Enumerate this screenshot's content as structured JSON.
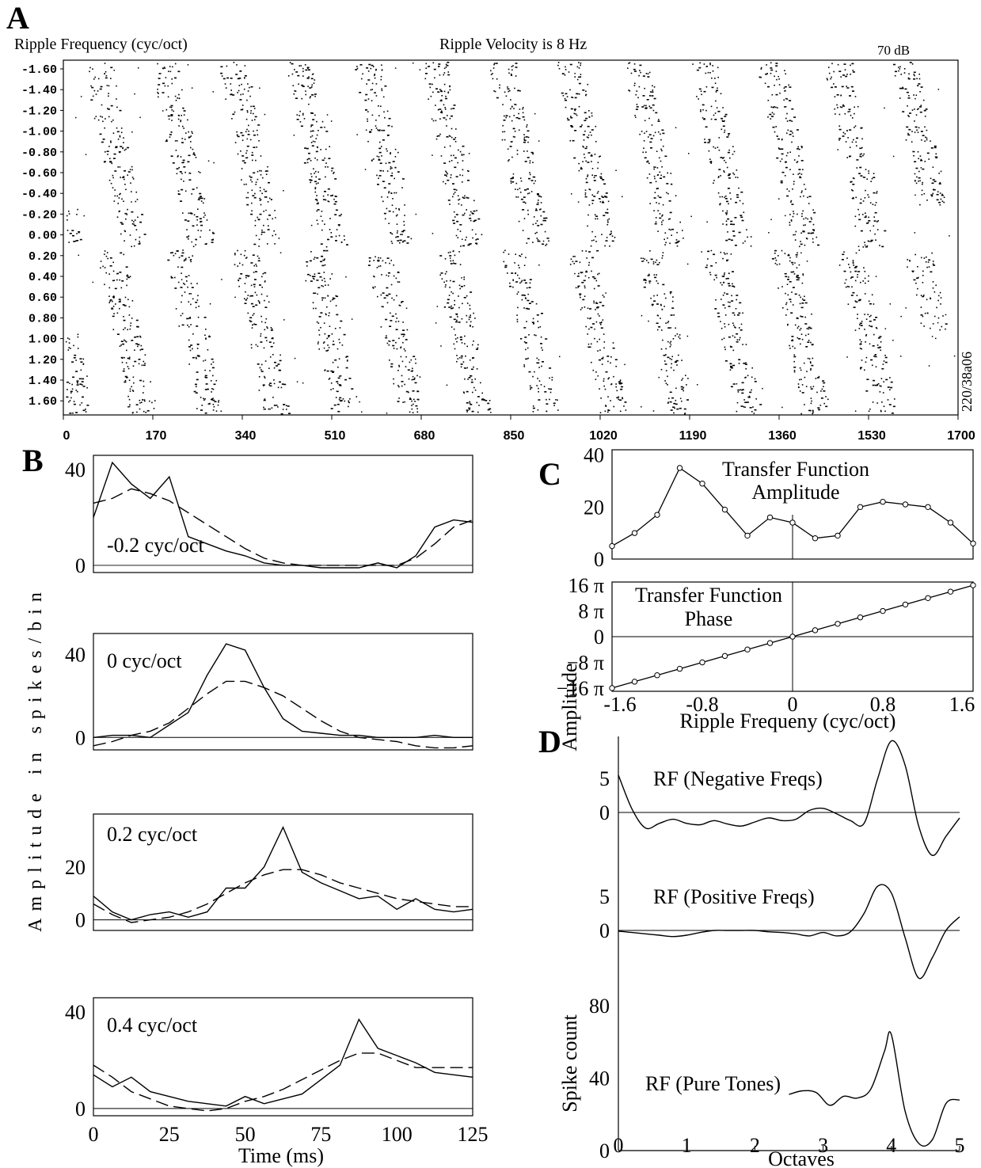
{
  "panels": {
    "A": {
      "letter": "A",
      "ylabel": "Ripple Frequency (cyc/oct)",
      "title": "Ripple Velocity is 8 Hz",
      "level": "70 dB",
      "side_id": "220/38a06",
      "y_ticks": [
        "-1.60",
        "-1.40",
        "-1.20",
        "-1.00",
        "-0.80",
        "-0.60",
        "-0.40",
        "-0.20",
        "0.00",
        "0.20",
        "0.40",
        "0.60",
        "0.80",
        "1.00",
        "1.20",
        "1.40",
        "1.60"
      ],
      "x_ticks": [
        "0",
        "170",
        "340",
        "510",
        "680",
        "850",
        "1020",
        "1190",
        "1360",
        "1530",
        "1700"
      ]
    },
    "B": {
      "letter": "B",
      "ylabel": "Amplitude in spikes/bin",
      "xlabel": "Time (ms)",
      "x_ticks": [
        "0",
        "25",
        "50",
        "75",
        "100",
        "125"
      ]
    },
    "C": {
      "letter": "C",
      "amp_title_1": "Transfer Function",
      "amp_title_2": "Amplitude",
      "phase_title_1": "Transfer Function",
      "phase_title_2": "Phase",
      "amp_ticks": [
        "40",
        "20",
        "0"
      ],
      "phase_ticks": [
        "16 π",
        "8 π",
        "0",
        "−8 π",
        "−16 π"
      ],
      "x_ticks": [
        "-1.6",
        "-0.8",
        "0",
        "0.8",
        "1.6"
      ],
      "xlabel": "Ripple Frequeny (cyc/oct)"
    },
    "D": {
      "letter": "D",
      "ylabel_amp": "Amplitude",
      "ylabel_spike": "Spike count",
      "neg_label": "RF (Negative Freqs)",
      "pos_label": "RF (Positive Freqs)",
      "pure_label": "RF (Pure Tones)",
      "neg_ticks": [
        "5",
        "0"
      ],
      "pos_ticks": [
        "5",
        "0"
      ],
      "spike_ticks": [
        "80",
        "40",
        "0"
      ],
      "x_ticks": [
        "0",
        "1",
        "2",
        "3",
        "4",
        "5"
      ],
      "xlabel": "Octaves"
    }
  },
  "chart_data": [
    {
      "panel": "B",
      "type": "line",
      "label": "-0.2 cyc/oct",
      "ylim": [
        -3,
        46
      ],
      "y_ticks": [
        0,
        40
      ],
      "x": [
        0,
        6.25,
        12.5,
        18.75,
        25,
        31.25,
        37.5,
        43.75,
        50,
        56.25,
        62.5,
        68.75,
        75,
        81.25,
        87.5,
        93.75,
        100,
        106.25,
        112.5,
        118.75,
        125
      ],
      "series": [
        {
          "style": "solid",
          "values": [
            20,
            43,
            34,
            28,
            37,
            12,
            9,
            6,
            4,
            1,
            0,
            0,
            -1,
            -1,
            -1,
            1,
            -1,
            4,
            16,
            19,
            18
          ]
        },
        {
          "style": "dashed",
          "values": [
            26,
            28,
            32,
            30,
            27,
            22,
            17,
            12,
            7,
            3,
            1,
            0,
            0,
            0,
            0,
            0,
            0,
            3,
            9,
            16,
            19
          ]
        }
      ]
    },
    {
      "panel": "B",
      "type": "line",
      "label": "0 cyc/oct",
      "ylim": [
        -6,
        50
      ],
      "y_ticks": [
        0,
        40
      ],
      "x": [
        0,
        6.25,
        12.5,
        18.75,
        25,
        31.25,
        37.5,
        43.75,
        50,
        56.25,
        62.5,
        68.75,
        75,
        81.25,
        87.5,
        93.75,
        100,
        106.25,
        112.5,
        118.75,
        125
      ],
      "series": [
        {
          "style": "solid",
          "values": [
            0,
            1,
            1,
            0,
            6,
            12,
            30,
            45,
            42,
            24,
            9,
            3,
            2,
            1,
            1,
            0,
            0,
            0,
            1,
            0,
            0
          ]
        },
        {
          "style": "dashed",
          "values": [
            -4,
            -2,
            1,
            3,
            7,
            14,
            21,
            27,
            27,
            24,
            20,
            14,
            8,
            3,
            0,
            -1,
            -2,
            -4,
            -5,
            -5,
            -4
          ]
        }
      ]
    },
    {
      "panel": "B",
      "type": "line",
      "label": "0.2 cyc/oct",
      "ylim": [
        -4,
        40
      ],
      "y_ticks": [
        0,
        20
      ],
      "x": [
        0,
        6.25,
        12.5,
        18.75,
        25,
        31.25,
        37.5,
        43.75,
        50,
        56.25,
        62.5,
        68.75,
        75,
        81.25,
        87.5,
        93.75,
        100,
        106.25,
        112.5,
        118.75,
        125
      ],
      "series": [
        {
          "style": "solid",
          "values": [
            9,
            3,
            0,
            2,
            3,
            1,
            3,
            12,
            12,
            20,
            35,
            18,
            14,
            11,
            8,
            9,
            4,
            8,
            4,
            3,
            4
          ]
        },
        {
          "style": "dashed",
          "values": [
            6,
            2,
            -1,
            0,
            1,
            3,
            6,
            10,
            14,
            17,
            19,
            19,
            17,
            14,
            12,
            10,
            8,
            7,
            6,
            5,
            5
          ]
        }
      ]
    },
    {
      "panel": "B",
      "type": "line",
      "label": "0.4 cyc/oct",
      "ylim": [
        -3,
        46
      ],
      "y_ticks": [
        0,
        40
      ],
      "x": [
        0,
        6.25,
        12.5,
        18.75,
        25,
        31.25,
        37.5,
        43.75,
        50,
        56.25,
        62.5,
        68.75,
        75,
        81.25,
        87.5,
        93.75,
        100,
        106.25,
        112.5,
        118.75,
        125
      ],
      "series": [
        {
          "style": "solid",
          "values": [
            14,
            9,
            13,
            7,
            5,
            3,
            2,
            1,
            5,
            2,
            4,
            6,
            12,
            18,
            37,
            25,
            22,
            19,
            15,
            14,
            13
          ]
        },
        {
          "style": "dashed",
          "values": [
            18,
            13,
            7,
            4,
            1,
            0,
            -1,
            0,
            3,
            5,
            8,
            12,
            16,
            20,
            23,
            23,
            20,
            17,
            17,
            17,
            17
          ]
        }
      ]
    },
    {
      "panel": "C",
      "type": "line",
      "label": "Transfer Function Amplitude",
      "x": [
        -1.6,
        -1.4,
        -1.2,
        -1.0,
        -0.8,
        -0.6,
        -0.4,
        -0.2,
        0.0,
        0.2,
        0.4,
        0.6,
        0.8,
        1.0,
        1.2,
        1.4,
        1.6
      ],
      "values": [
        5,
        10,
        17,
        35,
        29,
        19,
        9,
        16,
        14,
        8,
        9,
        20,
        22,
        21,
        20,
        14,
        6
      ],
      "ylim": [
        0,
        42
      ]
    },
    {
      "panel": "C",
      "type": "line",
      "label": "Transfer Function Phase",
      "unit": "π",
      "x": [
        -1.6,
        -1.4,
        -1.2,
        -1.0,
        -0.8,
        -0.6,
        -0.4,
        -0.2,
        0.0,
        0.2,
        0.4,
        0.6,
        0.8,
        1.0,
        1.2,
        1.4,
        1.6
      ],
      "values": [
        -16,
        -14,
        -12,
        -10,
        -8,
        -6,
        -4,
        -2,
        0,
        2,
        4,
        6,
        8,
        10,
        12,
        14,
        16
      ],
      "ylim": [
        -17,
        17
      ]
    },
    {
      "panel": "D",
      "type": "line",
      "label": "RF (Negative Freqs)",
      "x": [
        0,
        0.2,
        0.4,
        0.6,
        0.8,
        1.0,
        1.2,
        1.4,
        1.6,
        1.8,
        2.0,
        2.2,
        2.4,
        2.6,
        2.8,
        3.0,
        3.2,
        3.4,
        3.6,
        3.8,
        4.0,
        4.2,
        4.4,
        4.6,
        4.8,
        5.0
      ],
      "values": [
        5.5,
        0.5,
        -2.3,
        -1.6,
        -1.0,
        -1.6,
        -1.8,
        -1.2,
        -1.7,
        -2.0,
        -1.4,
        -0.8,
        -1.2,
        -1.0,
        0.3,
        0.6,
        -0.2,
        -1.2,
        -1.6,
        5.0,
        10.5,
        7.0,
        -2.0,
        -6.3,
        -3.5,
        -0.8
      ],
      "ylim": [
        -7,
        11
      ]
    },
    {
      "panel": "D",
      "type": "line",
      "label": "RF (Positive Freqs)",
      "x": [
        0,
        0.2,
        0.4,
        0.6,
        0.8,
        1.0,
        1.2,
        1.4,
        1.6,
        1.8,
        2.0,
        2.2,
        2.4,
        2.6,
        2.8,
        3.0,
        3.2,
        3.4,
        3.6,
        3.8,
        4.0,
        4.2,
        4.4,
        4.6,
        4.8,
        5.0
      ],
      "values": [
        -0.1,
        -0.3,
        -0.5,
        -0.7,
        -0.9,
        -0.7,
        -0.3,
        0.0,
        0.0,
        0.0,
        0.0,
        -0.2,
        -0.3,
        -0.5,
        -0.8,
        -0.3,
        -0.8,
        -0.2,
        2.5,
        6.5,
        5.5,
        -1.0,
        -7.0,
        -4.0,
        0.0,
        2.0
      ],
      "ylim": [
        -8,
        8
      ]
    },
    {
      "panel": "D",
      "type": "line",
      "label": "RF (Pure Tones)",
      "x": [
        2.5,
        2.7,
        2.9,
        3.1,
        3.3,
        3.5,
        3.7,
        3.9,
        4.0,
        4.2,
        4.4,
        4.6,
        4.8,
        5.0
      ],
      "values": [
        31,
        33,
        32,
        25,
        30,
        29,
        34,
        55,
        64,
        22,
        4,
        6,
        26,
        28
      ],
      "ylim": [
        0,
        95
      ]
    }
  ]
}
